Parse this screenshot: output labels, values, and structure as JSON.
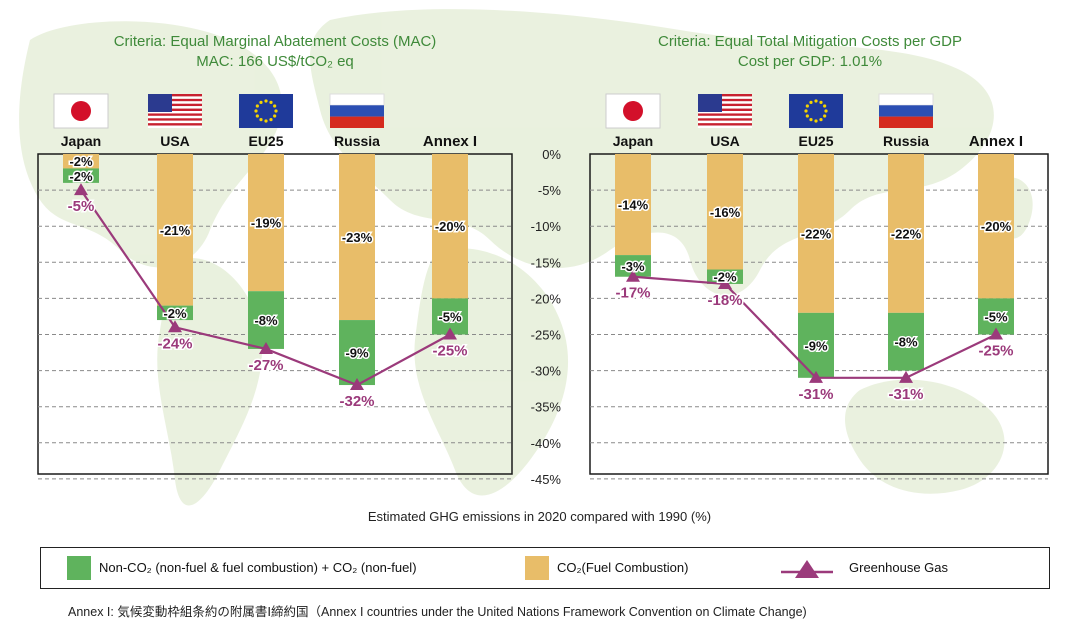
{
  "colors": {
    "non_co2": "#5fb35d",
    "co2_fuel": "#e8bd69",
    "ghg": "#9b3a7b",
    "title_green": "#3f8a3a"
  },
  "chart_data": [
    {
      "type": "bar",
      "stacked": true,
      "title_lines": [
        "Criteria: Equal Marginal Abatement Costs (MAC)",
        "MAC: 166 US$/tCO₂ eq"
      ],
      "categories": [
        "Japan",
        "USA",
        "EU25",
        "Russia",
        "Annex I"
      ],
      "series": [
        {
          "name": "CO₂(Fuel Combustion)",
          "values": [
            -2,
            -21,
            -19,
            -23,
            -20
          ],
          "labels": [
            "-2%",
            "-21%",
            "-19%",
            "-23%",
            "-20%"
          ]
        },
        {
          "name": "Non-CO₂ (non-fuel & fuel combustion) + CO₂ (non-fuel)",
          "values": [
            -2,
            -2,
            -8,
            -9,
            -5
          ],
          "labels": [
            "-2%",
            "-2%",
            "-8%",
            "-9%",
            "-5%"
          ]
        },
        {
          "name": "Greenhouse Gas",
          "type": "line",
          "values": [
            -5,
            -24,
            -27,
            -32,
            -25
          ],
          "labels": [
            "-5%",
            "-24%",
            "-27%",
            "-32%",
            "-25%"
          ]
        }
      ],
      "ylim": [
        -45,
        0
      ],
      "grid": true
    },
    {
      "type": "bar",
      "stacked": true,
      "title_lines": [
        "Criteria: Equal Total Mitigation Costs per GDP",
        "Cost per GDP: 1.01%"
      ],
      "categories": [
        "Japan",
        "USA",
        "EU25",
        "Russia",
        "Annex I"
      ],
      "series": [
        {
          "name": "CO₂(Fuel Combustion)",
          "values": [
            -14,
            -16,
            -22,
            -22,
            -20
          ],
          "labels": [
            "-14%",
            "-16%",
            "-22%",
            "-22%",
            "-20%"
          ]
        },
        {
          "name": "Non-CO₂ (non-fuel & fuel combustion) + CO₂ (non-fuel)",
          "values": [
            -3,
            -2,
            -9,
            -8,
            -5
          ],
          "labels": [
            "-3%",
            "-2%",
            "-9%",
            "-8%",
            "-5%"
          ]
        },
        {
          "name": "Greenhouse Gas",
          "type": "line",
          "values": [
            -17,
            -18,
            -31,
            -31,
            -25
          ],
          "labels": [
            "-17%",
            "-18%",
            "-31%",
            "-31%",
            "-25%"
          ]
        }
      ],
      "ylim": [
        -45,
        0
      ],
      "grid": true
    }
  ],
  "y_ticks": [
    "0%",
    "-5%",
    "-10%",
    "-15%",
    "-20%",
    "-25%",
    "-30%",
    "-35%",
    "-40%",
    "-45%"
  ],
  "flags": [
    "japan-flag",
    "usa-flag",
    "eu-flag",
    "russia-flag"
  ],
  "x_caption": "Estimated GHG emissions in 2020 compared with 1990 (%)",
  "legend": {
    "non_co2": "Non-CO₂ (non-fuel & fuel combustion) + CO₂ (non-fuel)",
    "co2_fuel": "CO₂(Fuel Combustion)",
    "ghg": "Greenhouse Gas"
  },
  "footnote": "Annex I: 気候変動枠組条約の附属書Ⅰ締約国（Annex I countries under the United Nations Framework Convention on Climate Change)"
}
